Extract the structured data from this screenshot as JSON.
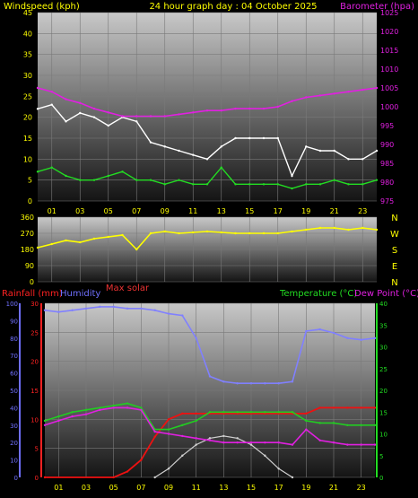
{
  "header": {
    "left_label": "Windspeed (kph)",
    "center_label": "24 hour graph day : 04 October 2025",
    "right_label": "Barometer (hpa)"
  },
  "mid": {
    "max_solar_label": "Max solar"
  },
  "bottom_header": {
    "left1": "Rainfall (mm)",
    "left2": "Humidity",
    "right1": "Temperature (°C)",
    "right2": "Dew Point (°C)"
  },
  "colors": {
    "background": "#000000",
    "panel_top": "#c8c8c8",
    "panel_bottom": "#141414",
    "windspeed": "#ffffff",
    "gust": "#e6e6e6",
    "wind_avg": "#22dd22",
    "barometer": "#e020e0",
    "wind_dir": "#ffff00",
    "rainfall": "#ee1111",
    "humidity": "#8080ff",
    "temperature": "#22cc22",
    "dewpoint": "#e020e0",
    "solar": "#d0d0d0",
    "axis_left_top": "#ffff00",
    "axis_right_top": "#e020e0",
    "axis_green": "#22dd22",
    "axis_red": "#ff2222",
    "axis_blue": "#7070ff"
  },
  "chart_data": [
    {
      "type": "line",
      "name": "wind-baro",
      "x_ticks": [
        "01",
        "03",
        "05",
        "07",
        "09",
        "11",
        "13",
        "15",
        "17",
        "19",
        "21",
        "23"
      ],
      "ylim_left": [
        0,
        45
      ],
      "yticks_left": [
        "0",
        "5",
        "10",
        "15",
        "20",
        "25",
        "30",
        "35",
        "40",
        "45"
      ],
      "ylim_right": [
        975,
        1025
      ],
      "yticks_right": [
        "975",
        "980",
        "985",
        "990",
        "995",
        "1000",
        "1005",
        "1010",
        "1015",
        "1020",
        "1025"
      ],
      "series": [
        {
          "name": "Windspeed",
          "axis": "left",
          "x": [
            0,
            1,
            2,
            3,
            4,
            5,
            6,
            7,
            8,
            9,
            10,
            11,
            12,
            13,
            14,
            15,
            16,
            17,
            18,
            19,
            20,
            21,
            22,
            23,
            24
          ],
          "y": [
            22,
            23,
            19,
            21,
            20,
            18,
            20,
            19,
            14,
            13,
            12,
            11,
            10,
            13,
            15,
            15,
            15,
            15,
            6,
            13,
            12,
            12,
            10,
            10,
            12
          ]
        },
        {
          "name": "Wind avg",
          "axis": "left",
          "x": [
            0,
            1,
            2,
            3,
            4,
            5,
            6,
            7,
            8,
            9,
            10,
            11,
            12,
            13,
            14,
            15,
            16,
            17,
            18,
            19,
            20,
            21,
            22,
            23,
            24
          ],
          "y": [
            7,
            8,
            6,
            5,
            5,
            6,
            7,
            5,
            5,
            4,
            5,
            4,
            4,
            8,
            4,
            4,
            4,
            4,
            3,
            4,
            4,
            5,
            4,
            4,
            5
          ]
        },
        {
          "name": "Barometer",
          "axis": "right",
          "x": [
            0,
            1,
            2,
            3,
            4,
            5,
            6,
            7,
            8,
            9,
            10,
            11,
            12,
            13,
            14,
            15,
            16,
            17,
            18,
            19,
            20,
            21,
            22,
            23,
            24
          ],
          "y": [
            1005,
            1004,
            1002,
            1001,
            999.5,
            998.5,
            997.5,
            997.5,
            997.5,
            997.5,
            998,
            998.5,
            999,
            999,
            999.5,
            999.5,
            999.5,
            1000,
            1001.5,
            1002.5,
            1003,
            1003.5,
            1004,
            1004.5,
            1005
          ]
        }
      ]
    },
    {
      "type": "scatter",
      "name": "wind-direction",
      "x_ticks": [
        "01",
        "03",
        "05",
        "07",
        "09",
        "11",
        "13",
        "15",
        "17",
        "19",
        "21",
        "23"
      ],
      "ylim_left": [
        0,
        360
      ],
      "yticks_left": [
        "0",
        "90",
        "180",
        "270",
        "360"
      ],
      "yticks_right": [
        "N",
        "E",
        "S",
        "W",
        "N"
      ],
      "series": [
        {
          "name": "Wind direction",
          "x": [
            0,
            1,
            2,
            3,
            4,
            5,
            6,
            7,
            8,
            9,
            10,
            11,
            12,
            13,
            14,
            15,
            16,
            17,
            18,
            19,
            20,
            21,
            22,
            23,
            24
          ],
          "y": [
            190,
            210,
            230,
            220,
            240,
            250,
            260,
            180,
            270,
            280,
            270,
            275,
            280,
            275,
            270,
            270,
            270,
            270,
            280,
            290,
            300,
            300,
            290,
            300,
            290
          ]
        }
      ]
    },
    {
      "type": "line",
      "name": "rain-humidity-temp",
      "x_ticks": [
        "01",
        "03",
        "05",
        "07",
        "09",
        "11",
        "13",
        "15",
        "17",
        "19",
        "21",
        "23"
      ],
      "ylim_humidity": [
        0,
        100
      ],
      "yticks_humidity": [
        "0",
        "10",
        "20",
        "30",
        "40",
        "50",
        "60",
        "70",
        "80",
        "90",
        "100"
      ],
      "ylim_rain": [
        0,
        30
      ],
      "yticks_rain": [
        "0",
        "5",
        "10",
        "15",
        "20",
        "25",
        "30"
      ],
      "ylim_temp": [
        0,
        40
      ],
      "yticks_temp": [
        "0",
        "5",
        "10",
        "15",
        "20",
        "25",
        "30",
        "35",
        "40"
      ],
      "series": [
        {
          "name": "Rainfall",
          "axis": "rain",
          "x": [
            0,
            5,
            6,
            7,
            8,
            9,
            10,
            11,
            12,
            13,
            14,
            15,
            16,
            17,
            18,
            19,
            20,
            21,
            22,
            23,
            24
          ],
          "y": [
            0,
            0,
            1,
            3,
            7,
            10,
            11,
            11,
            11,
            11,
            11,
            11,
            11,
            11,
            11,
            11,
            12,
            12,
            12,
            12,
            12
          ]
        },
        {
          "name": "Humidity",
          "axis": "humidity",
          "x": [
            0,
            1,
            2,
            3,
            4,
            5,
            6,
            7,
            8,
            9,
            10,
            11,
            12,
            13,
            14,
            15,
            16,
            17,
            18,
            19,
            20,
            21,
            22,
            23,
            24
          ],
          "y": [
            96,
            95,
            96,
            97,
            98,
            98,
            97,
            97,
            96,
            94,
            93,
            80,
            58,
            55,
            54,
            54,
            54,
            54,
            55,
            84,
            85,
            83,
            80,
            79,
            80
          ]
        },
        {
          "name": "Temperature",
          "axis": "temp",
          "x": [
            0,
            1,
            2,
            3,
            4,
            5,
            6,
            7,
            8,
            9,
            10,
            11,
            12,
            13,
            14,
            15,
            16,
            17,
            18,
            19,
            20,
            21,
            22,
            23,
            24
          ],
          "y": [
            13,
            14,
            15,
            15.5,
            16,
            16.5,
            17,
            16,
            11,
            11,
            12,
            13,
            15,
            15,
            15,
            15,
            15,
            15,
            15,
            13,
            12.5,
            12.5,
            12,
            12,
            12
          ]
        },
        {
          "name": "Dew point",
          "axis": "temp",
          "x": [
            0,
            1,
            2,
            3,
            4,
            5,
            6,
            7,
            8,
            9,
            10,
            11,
            12,
            13,
            14,
            15,
            16,
            17,
            18,
            19,
            20,
            21,
            22,
            23,
            24
          ],
          "y": [
            12,
            13,
            14,
            14.5,
            15.5,
            16,
            16,
            15.5,
            10.5,
            10,
            9.5,
            9,
            8.5,
            8,
            8,
            8,
            8,
            8,
            7.5,
            11,
            8.5,
            8,
            7.5,
            7.5,
            7.5
          ]
        },
        {
          "name": "Max solar",
          "axis": "temp",
          "x": [
            8,
            9,
            10,
            11,
            12,
            13,
            14,
            15,
            16,
            17,
            18
          ],
          "y": [
            0,
            2,
            5,
            7.5,
            9,
            9.5,
            9,
            7.5,
            5,
            2,
            0
          ]
        }
      ]
    }
  ]
}
